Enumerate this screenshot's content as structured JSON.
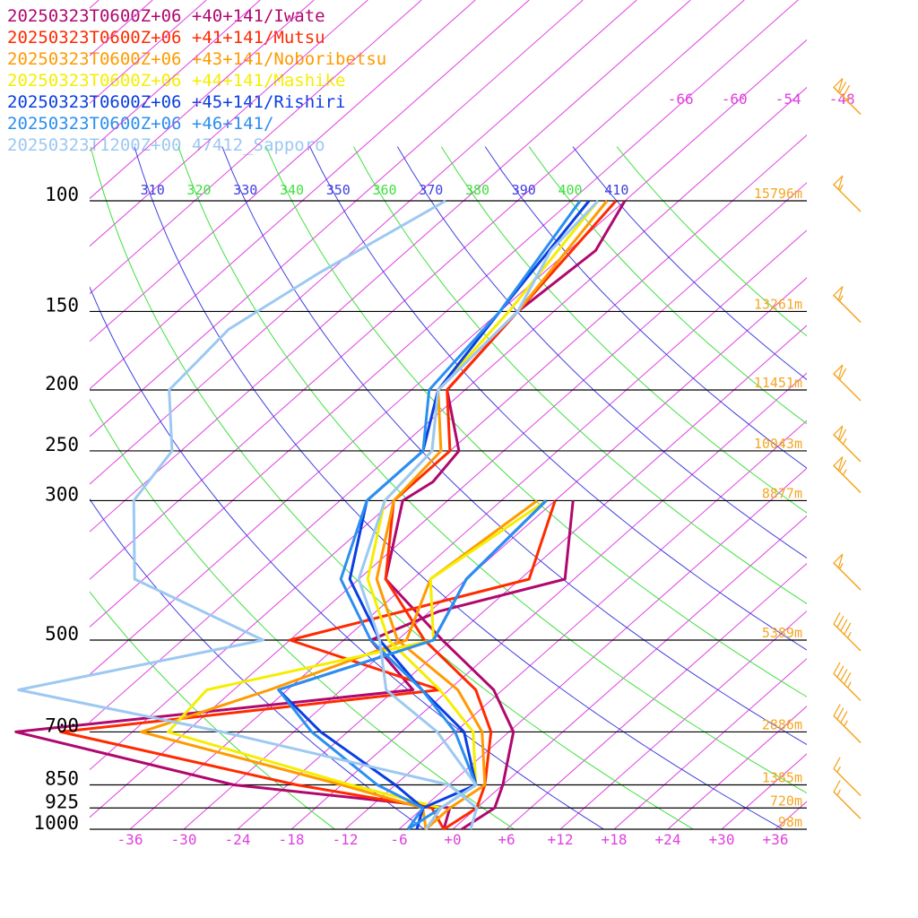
{
  "legend": [
    {
      "label": "20250323T0600Z+06 +40+141/Iwate",
      "color": "#b0086e"
    },
    {
      "label": "20250323T0600Z+06 +41+141/Mutsu",
      "color": "#ff2a00"
    },
    {
      "label": "20250323T0600Z+06 +43+141/Noboribetsu",
      "color": "#ff9a00"
    },
    {
      "label": "20250323T0600Z+06 +44+141/Mashike",
      "color": "#f5ee00"
    },
    {
      "label": "20250323T0600Z+06 +45+141/Rishiri",
      "color": "#0a3fe0"
    },
    {
      "label": "20250323T0600Z+06 +46+141/",
      "color": "#2a8ff0"
    },
    {
      "label": "20250323T1200Z+00 47412_Sapporo",
      "color": "#9cc8f2"
    }
  ],
  "chart_data": {
    "type": "skew-t",
    "pressure_levels": [
      {
        "p": 100,
        "label": "100",
        "height": "15796m"
      },
      {
        "p": 150,
        "label": "150",
        "height": "13261m"
      },
      {
        "p": 200,
        "label": "200",
        "height": "11451m"
      },
      {
        "p": 250,
        "label": "250",
        "height": "10043m"
      },
      {
        "p": 300,
        "label": "300",
        "height": "8877m"
      },
      {
        "p": 500,
        "label": "500",
        "height": "5389m"
      },
      {
        "p": 700,
        "label": "700",
        "height": "2886m"
      },
      {
        "p": 850,
        "label": "850",
        "height": "1385m"
      },
      {
        "p": 925,
        "label": "925",
        "height": "720m"
      },
      {
        "p": 1000,
        "label": "1000",
        "height": "98m"
      }
    ],
    "x_ticks": [
      "-36",
      "-30",
      "-24",
      "-18",
      "-12",
      "-6",
      "+0",
      "+6",
      "+12",
      "+18",
      "+24",
      "+30",
      "+36"
    ],
    "x_tick_values": [
      -36,
      -30,
      -24,
      -18,
      -12,
      -6,
      0,
      6,
      12,
      18,
      24,
      30,
      36
    ],
    "isotherm_top_labels": [
      "-66",
      "-60",
      "-54",
      "-48"
    ],
    "theta_labels": [
      "310",
      "320",
      "330",
      "340",
      "350",
      "360",
      "370",
      "380",
      "390",
      "400",
      "410"
    ],
    "theta_colors": [
      "#4040e0",
      "#40e040"
    ],
    "isotherm_color": "#e040e0",
    "height_label_color": "#f5a623",
    "series": [
      {
        "name": "Iwate",
        "color": "#b0086e",
        "temp": [
          [
            100,
            -60
          ],
          [
            120,
            -57
          ],
          [
            150,
            -58
          ],
          [
            200,
            -56
          ],
          [
            250,
            -47
          ],
          [
            280,
            -46
          ],
          [
            300,
            -47
          ],
          [
            400,
            -39
          ],
          [
            500,
            -25
          ],
          [
            600,
            -13
          ],
          [
            700,
            -5.5
          ],
          [
            850,
            0
          ],
          [
            925,
            2
          ],
          [
            1000,
            1
          ]
        ],
        "dew": [
          [
            300,
            -28
          ],
          [
            400,
            -19
          ],
          [
            450,
            -29
          ],
          [
            500,
            -33
          ],
          [
            600,
            -22
          ],
          [
            700,
            -61
          ],
          [
            850,
            -30
          ],
          [
            925,
            -3
          ],
          [
            1000,
            -1
          ]
        ]
      },
      {
        "name": "Mutsu",
        "color": "#ff2a00",
        "temp": [
          [
            100,
            -61
          ],
          [
            150,
            -58
          ],
          [
            200,
            -56
          ],
          [
            250,
            -48
          ],
          [
            300,
            -48
          ],
          [
            400,
            -39
          ],
          [
            500,
            -27
          ],
          [
            600,
            -15
          ],
          [
            700,
            -8
          ],
          [
            850,
            -2
          ],
          [
            925,
            0
          ],
          [
            1000,
            -1
          ]
        ],
        "dew": [
          [
            300,
            -30
          ],
          [
            400,
            -23
          ],
          [
            500,
            -42
          ],
          [
            600,
            -19
          ],
          [
            700,
            -56
          ],
          [
            850,
            -23
          ],
          [
            925,
            -5
          ],
          [
            1000,
            -1
          ]
        ]
      },
      {
        "name": "Noboribetsu",
        "color": "#ff9a00",
        "temp": [
          [
            100,
            -62
          ],
          [
            150,
            -58
          ],
          [
            200,
            -57
          ],
          [
            250,
            -49
          ],
          [
            300,
            -48
          ],
          [
            400,
            -40
          ],
          [
            500,
            -30
          ],
          [
            600,
            -17
          ],
          [
            700,
            -9
          ],
          [
            850,
            -2
          ],
          [
            925,
            -3
          ],
          [
            1000,
            -3
          ]
        ],
        "dew": [
          [
            300,
            -32
          ],
          [
            400,
            -34
          ],
          [
            500,
            -29
          ],
          [
            600,
            -38
          ],
          [
            700,
            -47
          ],
          [
            850,
            -18
          ],
          [
            925,
            -6
          ],
          [
            1000,
            -3
          ]
        ]
      },
      {
        "name": "Mashike",
        "color": "#f5ee00",
        "temp": [
          [
            100,
            -63
          ],
          [
            150,
            -59
          ],
          [
            200,
            -57
          ],
          [
            250,
            -50
          ],
          [
            300,
            -49
          ],
          [
            400,
            -41
          ],
          [
            500,
            -31
          ],
          [
            600,
            -19
          ],
          [
            700,
            -10
          ],
          [
            850,
            -3
          ],
          [
            925,
            -4
          ],
          [
            1000,
            -3
          ]
        ],
        "dew": [
          [
            300,
            -31
          ],
          [
            400,
            -34
          ],
          [
            500,
            -26
          ],
          [
            600,
            -45
          ],
          [
            700,
            -44
          ],
          [
            850,
            -17
          ],
          [
            925,
            -4
          ],
          [
            1000,
            -3
          ]
        ]
      },
      {
        "name": "Rishiri",
        "color": "#0a3fe0",
        "temp": [
          [
            100,
            -64
          ],
          [
            150,
            -60
          ],
          [
            200,
            -57
          ],
          [
            250,
            -51
          ],
          [
            300,
            -51
          ],
          [
            400,
            -43
          ],
          [
            500,
            -32
          ],
          [
            600,
            -21
          ],
          [
            700,
            -11
          ],
          [
            850,
            -3
          ],
          [
            925,
            -6
          ],
          [
            1000,
            -4
          ]
        ],
        "dew": [
          [
            300,
            -31
          ],
          [
            400,
            -30
          ],
          [
            500,
            -26
          ],
          [
            600,
            -37
          ],
          [
            700,
            -27
          ],
          [
            850,
            -12
          ],
          [
            925,
            -6
          ],
          [
            1000,
            -4
          ]
        ]
      },
      {
        "name": "",
        "color": "#2a8ff0",
        "temp": [
          [
            100,
            -65
          ],
          [
            150,
            -60
          ],
          [
            200,
            -58
          ],
          [
            250,
            -51
          ],
          [
            300,
            -51
          ],
          [
            400,
            -44
          ],
          [
            500,
            -33
          ],
          [
            600,
            -21
          ],
          [
            700,
            -12
          ],
          [
            850,
            -3
          ],
          [
            925,
            -4
          ],
          [
            1000,
            -5
          ]
        ],
        "dew": [
          [
            300,
            -31
          ],
          [
            400,
            -30
          ],
          [
            500,
            -26
          ],
          [
            600,
            -37
          ],
          [
            700,
            -28
          ],
          [
            850,
            -14
          ],
          [
            925,
            -6
          ],
          [
            1000,
            -5
          ]
        ]
      },
      {
        "name": "Sapporo",
        "color": "#9cc8f2",
        "temp": [
          [
            100,
            -63
          ],
          [
            120,
            -62
          ],
          [
            150,
            -58
          ],
          [
            200,
            -57
          ],
          [
            250,
            -50
          ],
          [
            300,
            -49
          ],
          [
            400,
            -42
          ],
          [
            500,
            -32
          ],
          [
            600,
            -25
          ],
          [
            700,
            -14
          ],
          [
            850,
            -3
          ],
          [
            925,
            -4
          ],
          [
            1000,
            -3
          ]
        ],
        "dew": [
          [
            100,
            -80
          ],
          [
            130,
            -85
          ],
          [
            160,
            -88
          ],
          [
            200,
            -87
          ],
          [
            250,
            -79
          ],
          [
            300,
            -77
          ],
          [
            400,
            -67
          ],
          [
            500,
            -45
          ],
          [
            600,
            -66
          ],
          [
            700,
            -38
          ],
          [
            850,
            -6
          ],
          [
            925,
            0
          ],
          [
            1000,
            2
          ]
        ]
      }
    ],
    "wind_barbs": [
      {
        "p": 70,
        "speed": 75
      },
      {
        "p": 100,
        "speed": 55
      },
      {
        "p": 150,
        "speed": 55
      },
      {
        "p": 200,
        "speed": 60
      },
      {
        "p": 250,
        "speed": 65
      },
      {
        "p": 280,
        "speed": 65
      },
      {
        "p": 400,
        "speed": 55
      },
      {
        "p": 500,
        "speed": 45
      },
      {
        "p": 600,
        "speed": 45
      },
      {
        "p": 700,
        "speed": 35
      },
      {
        "p": 850,
        "speed": 15
      },
      {
        "p": 925,
        "speed": 15
      }
    ],
    "wind_barb_color": "#f5a623"
  }
}
